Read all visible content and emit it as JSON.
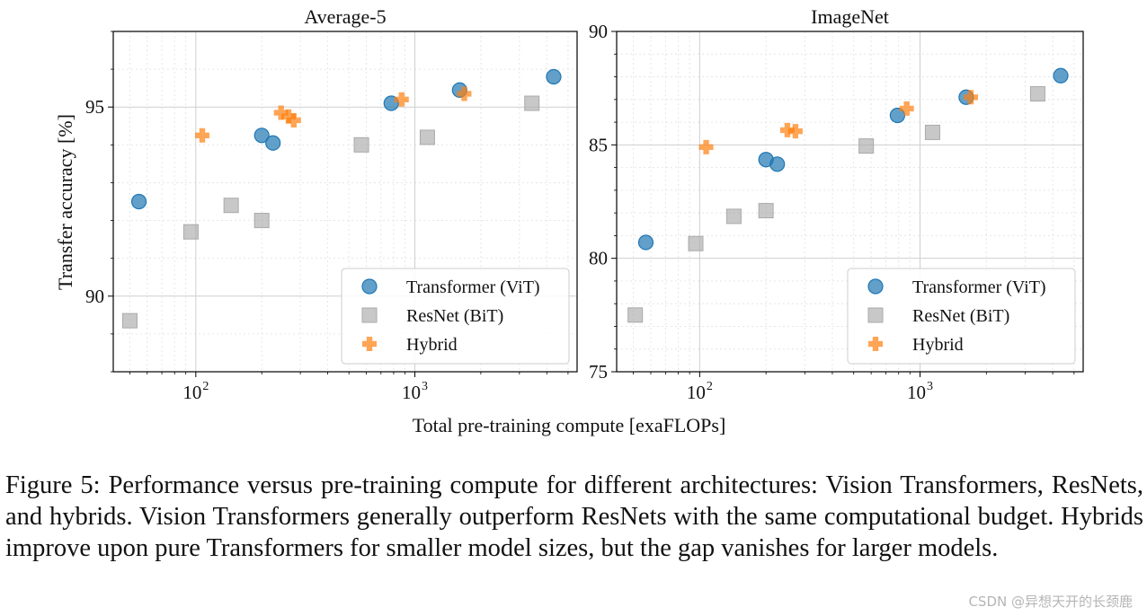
{
  "figure": {
    "xlabel": "Total pre-training compute [exaFLOPs]",
    "ylabel": "Transfer accuracy [%]"
  },
  "chart_data": [
    {
      "type": "scatter",
      "title": "Average-5",
      "xlabel": "Total pre-training compute [exaFLOPs]",
      "ylabel": "Transfer accuracy [%]",
      "xscale": "log",
      "xlim": [
        42,
        5500
      ],
      "ylim": [
        88,
        97
      ],
      "xticks": [
        {
          "value": 100,
          "label": "10",
          "exp": "2"
        },
        {
          "value": 1000,
          "label": "10",
          "exp": "3"
        }
      ],
      "yticks": [
        90,
        95
      ],
      "grid": true,
      "legend_position": "lower-right",
      "series": [
        {
          "name": "Transformer (ViT)",
          "color": "#1f77b4",
          "marker": "circle",
          "x": [
            55,
            200,
            225,
            780,
            1600,
            4300
          ],
          "y": [
            92.5,
            94.25,
            94.05,
            95.1,
            95.45,
            95.8
          ]
        },
        {
          "name": "ResNet (BiT)",
          "color": "#aaaaaa",
          "marker": "square",
          "x": [
            50,
            95,
            145,
            200,
            570,
            1140,
            3420
          ],
          "y": [
            89.35,
            91.7,
            92.4,
            92.0,
            94.0,
            94.2,
            95.1
          ]
        },
        {
          "name": "Hybrid",
          "color": "#ff7f0e",
          "marker": "plus",
          "x": [
            107,
            245,
            265,
            280,
            870,
            1680
          ],
          "y": [
            94.25,
            94.85,
            94.75,
            94.65,
            95.2,
            95.35
          ]
        }
      ]
    },
    {
      "type": "scatter",
      "title": "ImageNet",
      "xlabel": "Total pre-training compute [exaFLOPs]",
      "ylabel": "",
      "xscale": "log",
      "xlim": [
        42,
        5500
      ],
      "ylim": [
        75,
        90
      ],
      "xticks": [
        {
          "value": 100,
          "label": "10",
          "exp": "2"
        },
        {
          "value": 1000,
          "label": "10",
          "exp": "3"
        }
      ],
      "yticks": [
        75,
        80,
        85,
        90
      ],
      "grid": true,
      "legend_position": "lower-right",
      "series": [
        {
          "name": "Transformer (ViT)",
          "color": "#1f77b4",
          "marker": "circle",
          "x": [
            57,
            200,
            225,
            790,
            1620,
            4350
          ],
          "y": [
            80.7,
            84.35,
            84.15,
            86.3,
            87.1,
            88.05
          ]
        },
        {
          "name": "ResNet (BiT)",
          "color": "#aaaaaa",
          "marker": "square",
          "x": [
            51,
            96,
            143,
            200,
            570,
            1140,
            3420
          ],
          "y": [
            77.5,
            80.65,
            81.85,
            82.1,
            84.95,
            85.55,
            87.25
          ]
        },
        {
          "name": "Hybrid",
          "color": "#ff7f0e",
          "marker": "plus",
          "x": [
            107,
            250,
            272,
            870,
            1700
          ],
          "y": [
            84.9,
            85.65,
            85.6,
            86.6,
            87.1
          ]
        }
      ]
    }
  ],
  "caption": "Figure 5: Performance versus pre-training compute for different architectures: Vision Transformers, ResNets, and hybrids. Vision Transformers generally outperform ResNets with the same computational budget. Hybrids improve upon pure Transformers for smaller model sizes, but the gap vanishes for larger models.",
  "watermark": "CSDN @异想天开的长颈鹿"
}
